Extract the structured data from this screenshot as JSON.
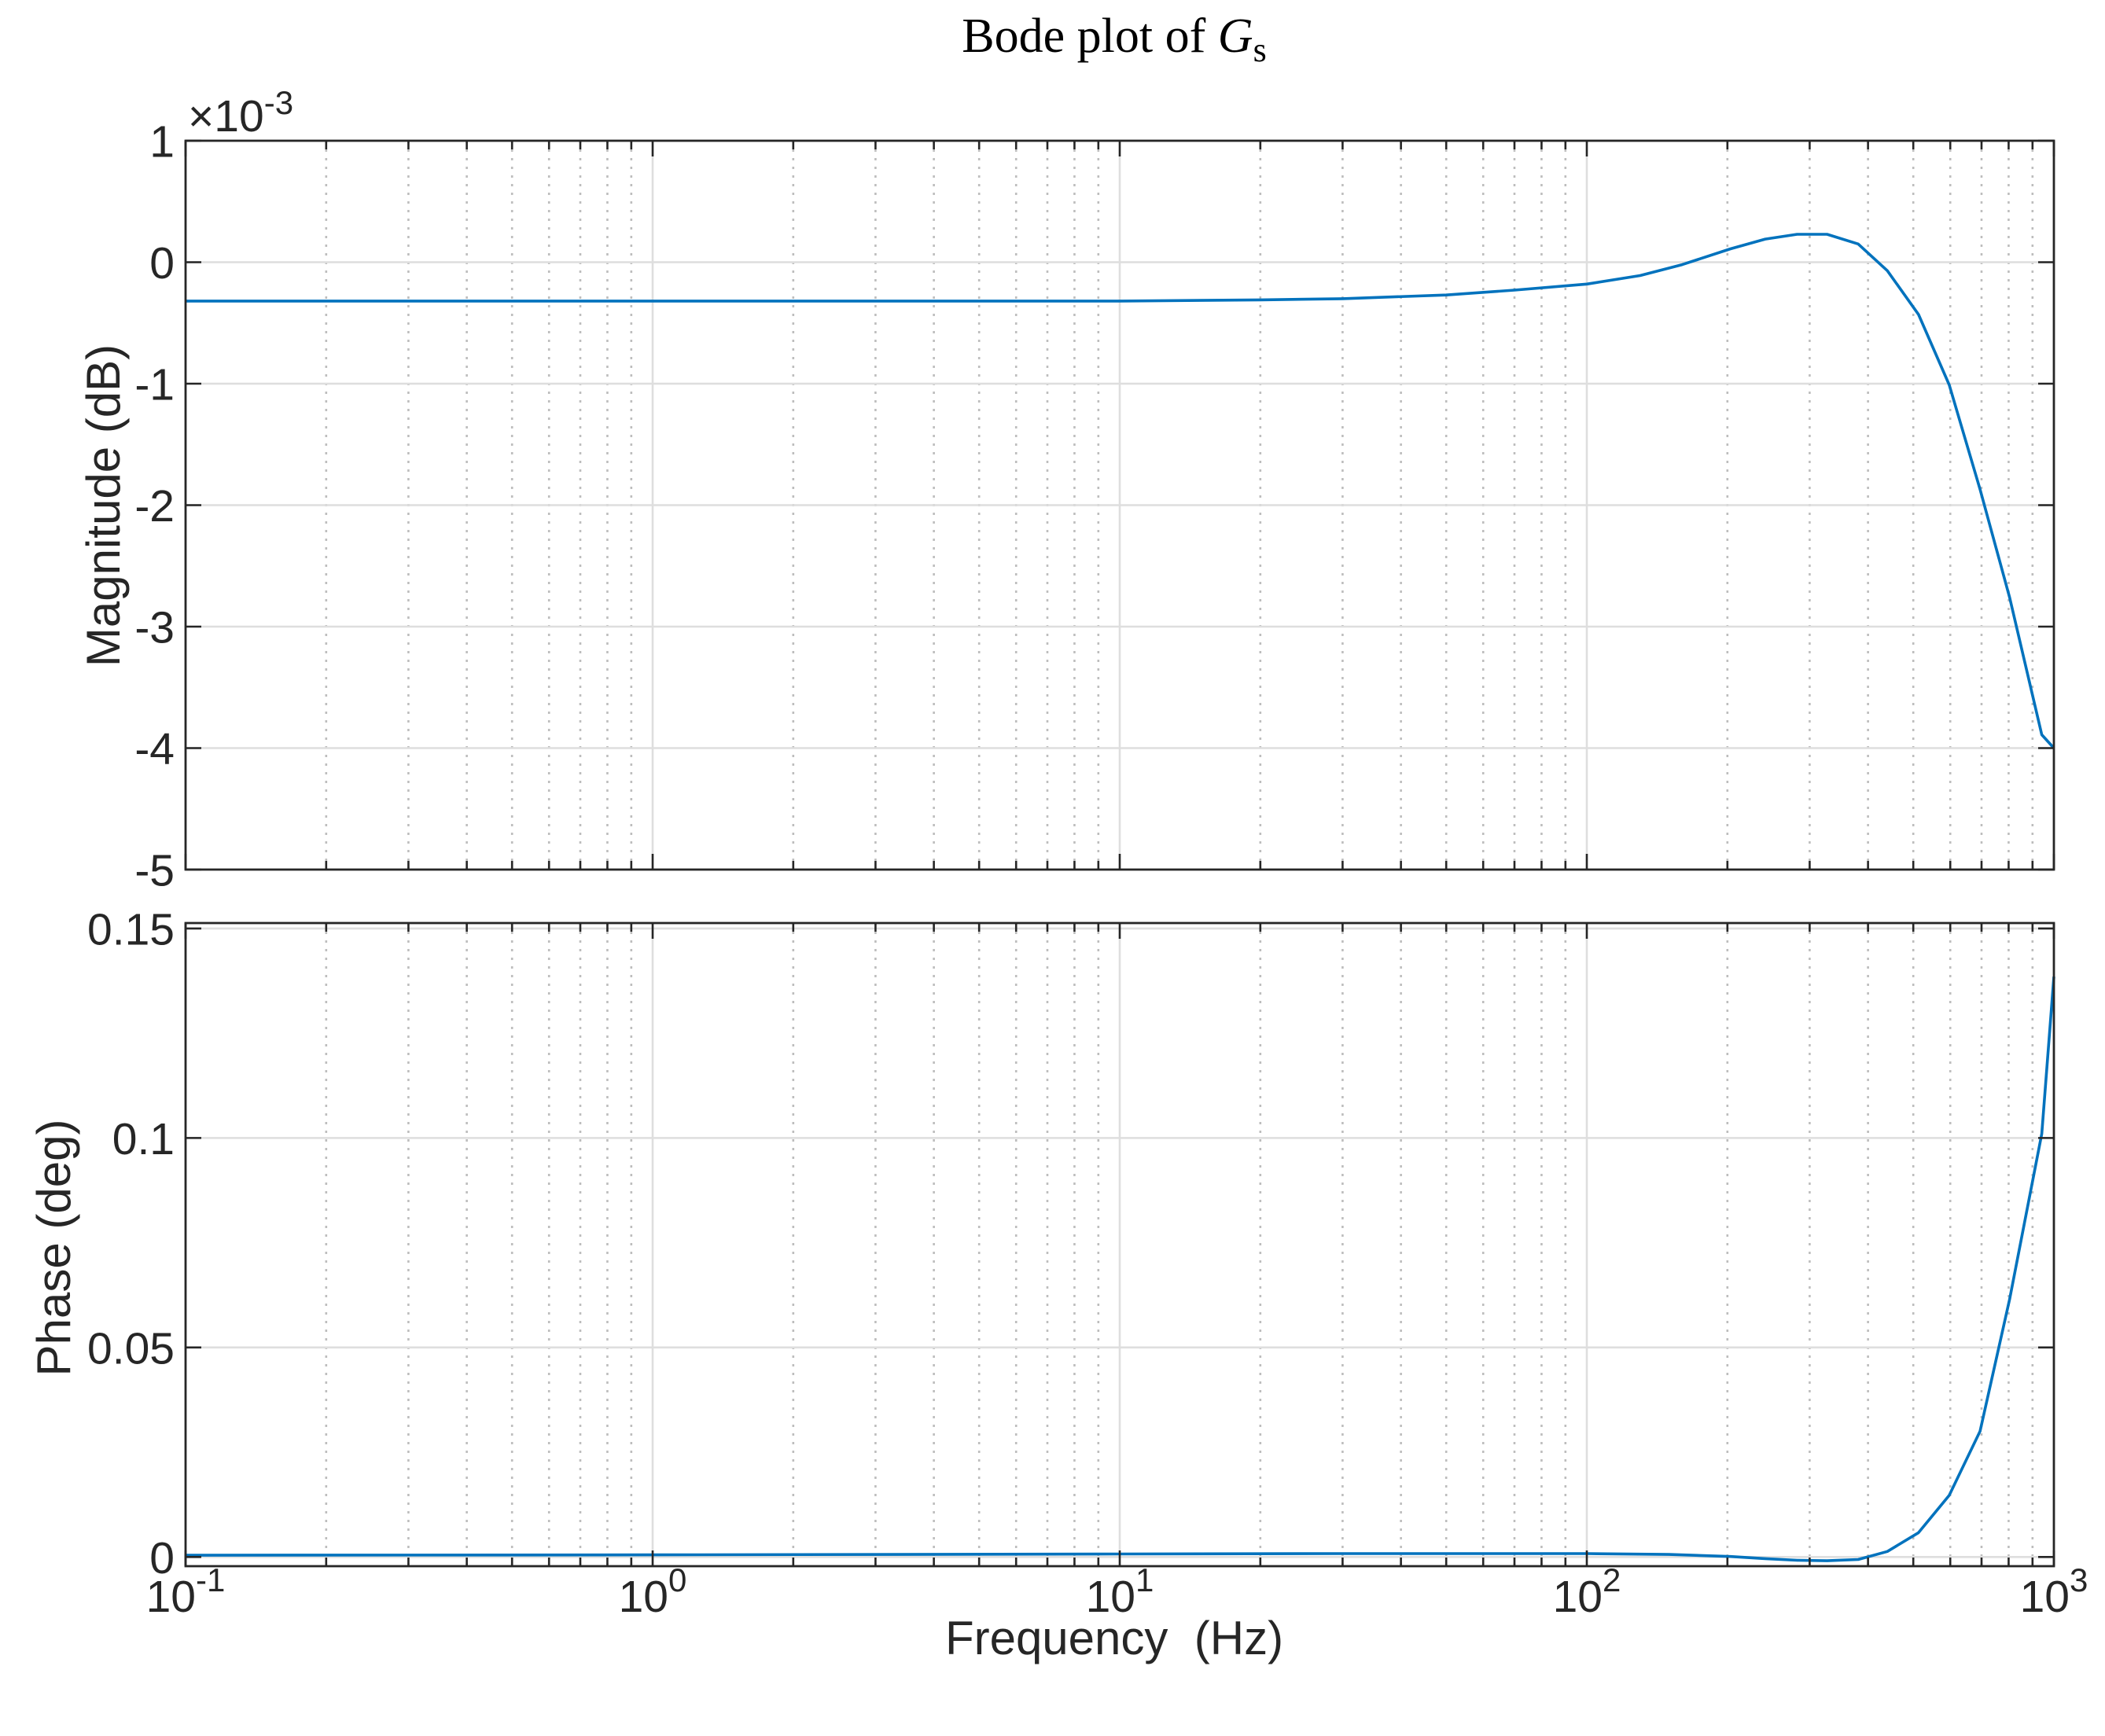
{
  "chart_data": [
    {
      "type": "line",
      "title": {
        "text": "Bode plot of ",
        "symbol": "G",
        "subscript": "s"
      },
      "ylabel": "Magnitude (dB)",
      "xscale": "log",
      "xlim": [
        0.1,
        1000
      ],
      "ylim": [
        -5,
        1
      ],
      "y_multiplier": {
        "base": "×10",
        "exp": "-3"
      },
      "xticks": [
        0.1,
        1,
        10,
        100,
        1000
      ],
      "yticks": [
        -5,
        -4,
        -3,
        -2,
        -1,
        0,
        1
      ],
      "ytick_labels": [
        "-5",
        "-4",
        "-3",
        "-2",
        "-1",
        "0",
        "1"
      ],
      "grid": true,
      "series": [
        {
          "color": "#0072BD",
          "x": [
            0.1,
            1,
            10,
            20,
            30,
            50,
            70,
            100,
            130,
            160,
            203,
            241,
            282,
            327,
            381,
            440,
            513,
            597,
            695,
            804,
            942,
            1000
          ],
          "y": [
            -0.32,
            -0.32,
            -0.32,
            -0.31,
            -0.3,
            -0.27,
            -0.23,
            -0.18,
            -0.11,
            -0.02,
            0.11,
            0.19,
            0.23,
            0.23,
            0.15,
            -0.07,
            -0.43,
            -1.01,
            -1.87,
            -2.76,
            -3.89,
            -4.0
          ]
        }
      ]
    },
    {
      "type": "line",
      "xlabel": "Frequency  (Hz)",
      "ylabel": "Phase (deg)",
      "xscale": "log",
      "xlim": [
        0.1,
        1000
      ],
      "ylim": [
        -0.0022,
        0.1513
      ],
      "xticks": [
        0.1,
        1,
        10,
        100,
        1000
      ],
      "xtick_labels": [
        {
          "base": "10",
          "exp": "-1"
        },
        {
          "base": "10",
          "exp": "0"
        },
        {
          "base": "10",
          "exp": "1"
        },
        {
          "base": "10",
          "exp": "2"
        },
        {
          "base": "10",
          "exp": "3"
        }
      ],
      "yticks": [
        0,
        0.05,
        0.1,
        0.15
      ],
      "ytick_labels": [
        "0",
        "0.05",
        "0.1",
        "0.15"
      ],
      "grid": true,
      "series": [
        {
          "color": "#0072BD",
          "x": [
            0.1,
            1,
            10,
            30,
            50,
            100,
            150,
            203,
            241,
            282,
            327,
            381,
            440,
            513,
            597,
            695,
            804,
            942,
            1000
          ],
          "y": [
            0.0004,
            0.0005,
            0.0007,
            0.0008,
            0.0008,
            0.0008,
            0.0006,
            0.0001,
            -0.0004,
            -0.0008,
            -0.0009,
            -0.0006,
            0.0013,
            0.0058,
            0.0147,
            0.03,
            0.0615,
            0.101,
            0.1385
          ]
        }
      ]
    }
  ]
}
